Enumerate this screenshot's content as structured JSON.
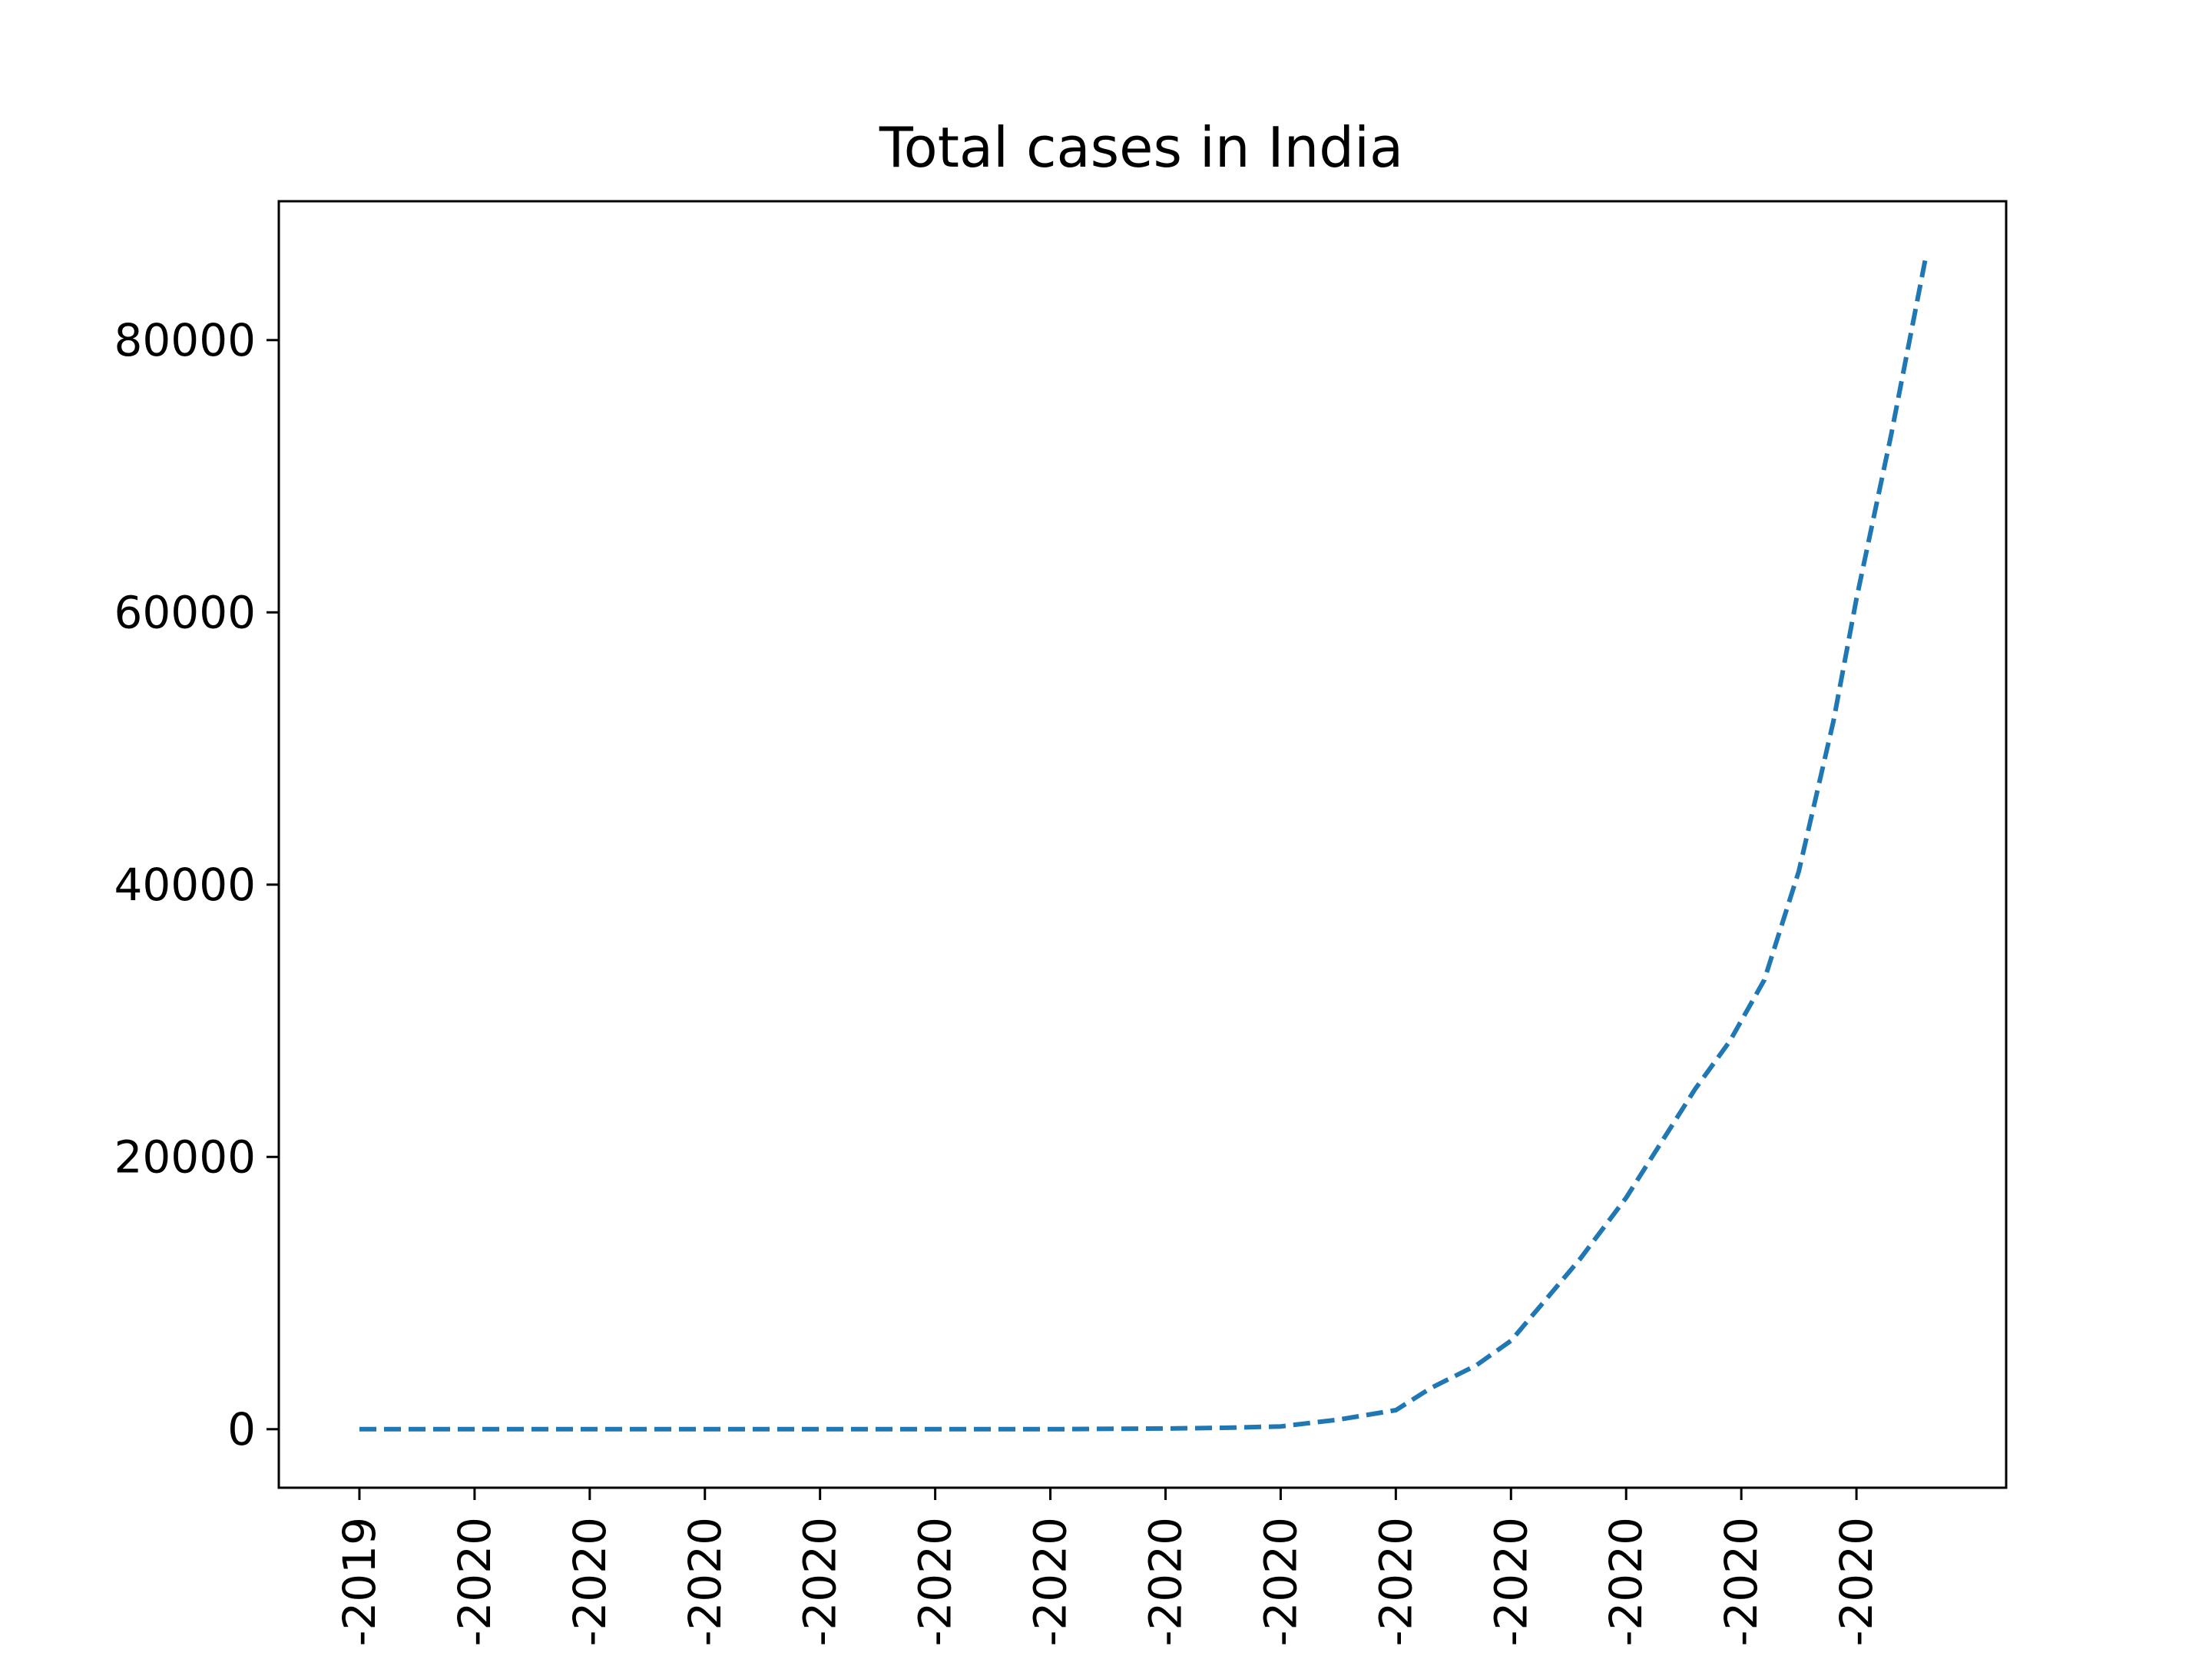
{
  "chart_data": {
    "type": "line",
    "title": "Total cases in India",
    "xlabel": "",
    "ylabel": "",
    "grid": false,
    "ylim": [
      -4300,
      90200
    ],
    "yticks": [
      0,
      20000,
      40000,
      60000,
      80000
    ],
    "ytick_labels": [
      "0",
      "20000",
      "40000",
      "60000",
      "80000"
    ],
    "xlim": [
      -0.7,
      14.3
    ],
    "xticks": [
      0,
      1,
      2,
      3,
      4,
      5,
      6,
      7,
      8,
      9,
      10,
      11,
      12,
      13
    ],
    "xtick_labels": [
      "-2019",
      "-2020",
      "-2020",
      "-2020",
      "-2020",
      "-2020",
      "-2020",
      "-2020",
      "-2020",
      "-2020",
      "-2020",
      "-2020",
      "-2020",
      "-2020"
    ],
    "line_color": "#1f77b4",
    "line_style": "dashed",
    "series": [
      {
        "x": [
          0,
          1,
          2,
          3,
          4,
          5,
          6,
          7,
          7.5,
          8,
          8.5,
          9,
          9.3,
          9.7,
          10,
          10.3,
          10.6,
          11,
          11.3,
          11.6,
          11.9,
          12.2,
          12.5,
          12.8,
          13,
          13.3,
          13.6
        ],
        "values": [
          0,
          0,
          0,
          0,
          0,
          0,
          0,
          50,
          100,
          200,
          700,
          1400,
          3000,
          4700,
          6500,
          9500,
          12500,
          17000,
          21000,
          25000,
          28500,
          33000,
          41000,
          52000,
          61000,
          73000,
          86000
        ]
      }
    ]
  }
}
